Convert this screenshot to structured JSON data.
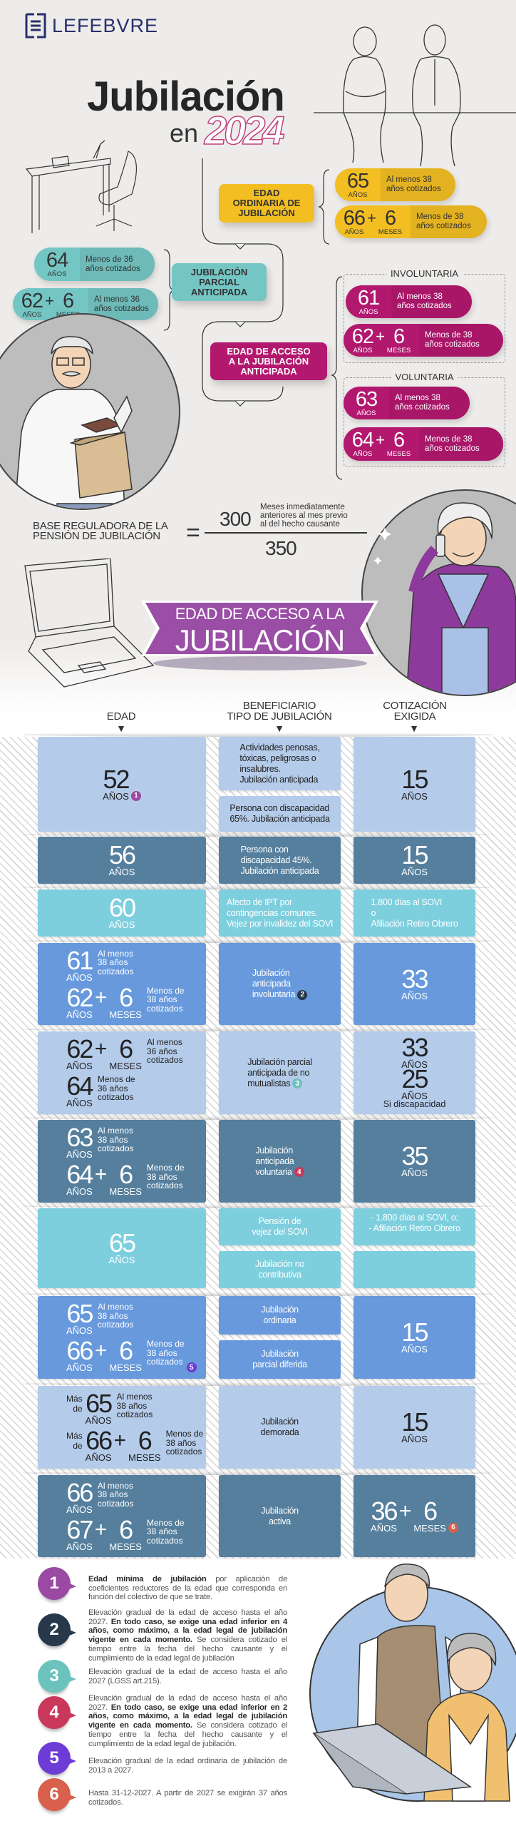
{
  "brand": {
    "logo_text": "LEFEBVRE"
  },
  "header": {
    "title": "Jubilación",
    "en": "en",
    "year": "2024"
  },
  "flow": {
    "ordinaria": {
      "label": "EDAD\nORDINARIA DE\nJUBILACIÓN",
      "color": "#f2be22",
      "items": [
        {
          "num": "65",
          "unit": "AÑOS",
          "desc": "Al menos 38\naños cotizados"
        },
        {
          "num": "66",
          "unit": "AÑOS",
          "sign": "+",
          "num2": "6",
          "unit2": "MESES",
          "desc": "Menos de 38\naños cotizados"
        }
      ]
    },
    "parcial": {
      "label": "JUBILACIÓN\nPARCIAL\nANTICIPADA",
      "color": "#74c6c4",
      "items": [
        {
          "num": "64",
          "unit": "AÑOS",
          "desc": "Menos de 36\naños cotizados"
        },
        {
          "num": "62",
          "unit": "AÑOS",
          "sign": "+",
          "num2": "6",
          "unit2": "MESES",
          "desc": "Al menos 36\naños cotizados"
        }
      ]
    },
    "anticipada": {
      "label": "EDAD DE ACCESO\nA LA JUBILACIÓN\nANTICIPADA",
      "color": "#b3186f",
      "involuntaria": {
        "label": "INVOLUNTARIA",
        "items": [
          {
            "num": "61",
            "unit": "AÑOS",
            "desc": "Al menos 38\naños cotizados"
          },
          {
            "num": "62",
            "unit": "AÑOS",
            "sign": "+",
            "num2": "6",
            "unit2": "MESES",
            "desc": "Menos de 38\naños cotizados"
          }
        ]
      },
      "voluntaria": {
        "label": "VOLUNTARIA",
        "items": [
          {
            "num": "63",
            "unit": "AÑOS",
            "desc": "Al menos 38\naños cotizados"
          },
          {
            "num": "64",
            "unit": "AÑOS",
            "sign": "+",
            "num2": "6",
            "unit2": "MESES",
            "desc": "Menos de 38\naños cotizados"
          }
        ]
      }
    }
  },
  "formula": {
    "left": "BASE REGULADORA DE LA\nPENSIÓN DE JUBILACIÓN",
    "equals": "=",
    "numerator": "300",
    "numerator_note": "Meses inmediatamente\nanteriores al mes previo\nal del hecho causante",
    "denominator": "350"
  },
  "banner": {
    "line1": "EDAD DE ACCESO A LA",
    "line2": "JUBILACIÓN",
    "color": "#9a4ea6"
  },
  "table": {
    "headers": {
      "edad": "EDAD",
      "tipo": "BENEFICIARIO\nTIPO DE JUBILACIÓN",
      "cotizacion": "COTIZACIÓN\nEXIGIDA",
      "arrow": "▼"
    },
    "row_colors": [
      "#b4cbea",
      "#557f9d",
      "#7dcfde",
      "#6799dc",
      "#b4cbea",
      "#557f9d",
      "#7dcfde",
      "#6799dc",
      "#b4cbea",
      "#557f9d"
    ],
    "rows": [
      {
        "edad": [
          {
            "num": "52",
            "unit": "AÑOS",
            "badge": "1"
          }
        ],
        "tipo": [
          "Actividades penosas,\ntóxicas, peligrosas o\ninsalubres.\nJubilación anticipada",
          "Persona con discapacidad\n65%. Jubilación anticipada"
        ],
        "cot": [
          [
            {
              "num": "15",
              "unit": "AÑOS"
            }
          ]
        ]
      },
      {
        "edad": [
          {
            "num": "56",
            "unit": "AÑOS"
          }
        ],
        "tipo": [
          "Persona con\ndiscapacidad 45%.\nJubilación anticipada"
        ],
        "cot": [
          [
            {
              "num": "15",
              "unit": "AÑOS"
            }
          ]
        ]
      },
      {
        "edad": [
          {
            "num": "60",
            "unit": "AÑOS"
          }
        ],
        "tipo": [
          "Afecto de IPT por\ncontingencias comunes.\nVejez por invalidez del SOVI"
        ],
        "cot": [
          [
            {
              "text": "1.800 días al SOVI\no\nAfiliación Retiro Obrero"
            }
          ]
        ]
      },
      {
        "edad": [
          {
            "num": "61",
            "unit": "AÑOS",
            "note": "Al menos\n38 años\ncotizados"
          },
          {
            "num": "62",
            "unit": "AÑOS",
            "sign": "+",
            "num2": "6",
            "unit2": "MESES",
            "note": "Menos de\n38 años\ncotizados"
          }
        ],
        "tipo": [
          "Jubilación\nanticipada\ninvoluntaria"
        ],
        "tipo_badge": "2",
        "cot": [
          [
            {
              "num": "33",
              "unit": "AÑOS"
            }
          ]
        ]
      },
      {
        "edad": [
          {
            "num": "62",
            "unit": "AÑOS",
            "sign": "+",
            "num2": "6",
            "unit2": "MESES",
            "note": "Al menos\n36 años\ncotizados"
          },
          {
            "num": "64",
            "unit": "AÑOS",
            "note": "Menos de\n36 años\ncotizados"
          }
        ],
        "tipo": [
          "Jubilación parcial\nanticipada de no\nmutualistas"
        ],
        "tipo_badge": "3",
        "cot": [
          [
            {
              "num": "33",
              "unit": "AÑOS"
            },
            {
              "num": "25",
              "unit": "AÑOS",
              "sub": "Si discapacidad"
            }
          ]
        ]
      },
      {
        "edad": [
          {
            "num": "63",
            "unit": "AÑOS",
            "note": "Al menos\n38 años\ncotizados"
          },
          {
            "num": "64",
            "unit": "AÑOS",
            "sign": "+",
            "num2": "6",
            "unit2": "MESES",
            "note": "Menos de\n38 años\ncotizados"
          }
        ],
        "tipo": [
          "Jubilación\nanticipada\nvoluntaria"
        ],
        "tipo_badge": "4",
        "cot": [
          [
            {
              "num": "35",
              "unit": "AÑOS"
            }
          ]
        ]
      },
      {
        "edad": [
          {
            "num": "65",
            "unit": "AÑOS"
          }
        ],
        "tipo": [
          "Pensión de\nvejez del SOVI",
          "Jubilación no\ncontributiva"
        ],
        "cot": [
          [
            {
              "text": "- 1.800 días al SOVI, o;\n- Afiliación Retiro Obrero"
            }
          ],
          []
        ]
      },
      {
        "edad": [
          {
            "num": "65",
            "unit": "AÑOS",
            "note": "Al menos\n38 años\ncotizados"
          },
          {
            "num": "66",
            "unit": "AÑOS",
            "sign": "+",
            "num2": "6",
            "unit2": "MESES",
            "note": "Menos de\n38 años\ncotizados",
            "badge": "5"
          }
        ],
        "tipo": [
          "Jubilación\nordinaria",
          "Jubilación\nparcial diferida"
        ],
        "cot": [
          [
            {
              "num": "15",
              "unit": "AÑOS"
            }
          ]
        ]
      },
      {
        "edad": [
          {
            "prefix": "Más\nde",
            "num": "65",
            "unit": "AÑOS",
            "note": "Al menos\n38 años\ncotizados"
          },
          {
            "prefix": "Más\nde",
            "num": "66",
            "unit": "AÑOS",
            "sign": "+",
            "num2": "6",
            "unit2": "MESES",
            "note": "Menos de\n38 años\ncotizados"
          }
        ],
        "tipo": [
          "Jubilación\ndemorada"
        ],
        "cot": [
          [
            {
              "num": "15",
              "unit": "AÑOS"
            }
          ]
        ]
      },
      {
        "edad": [
          {
            "num": "66",
            "unit": "AÑOS",
            "note": "Al menos\n38 años\ncotizados"
          },
          {
            "num": "67",
            "unit": "AÑOS",
            "sign": "+",
            "num2": "6",
            "unit2": "MESES",
            "note": "Menos de\n38 años\ncotizados"
          }
        ],
        "tipo": [
          "Jubilación\nactiva"
        ],
        "cot": [
          [
            {
              "num": "36",
              "unit": "AÑOS",
              "sign": "+",
              "num2": "6",
              "unit2": "MESES",
              "badge": "6"
            }
          ]
        ]
      }
    ]
  },
  "badge_colors": {
    "1": "#9b4aa3",
    "2": "#26384a",
    "3": "#6cc3bd",
    "4": "#c9385a",
    "5": "#6d3bd6",
    "6": "#d9604c"
  },
  "footnotes": [
    {
      "n": "1",
      "segments": [
        {
          "text": "Edad mínima de jubilación",
          "bold": true
        },
        {
          "text": " por aplicación de coeficientes reductores de la edad que corresponda en función del colectivo de que se trate."
        }
      ]
    },
    {
      "n": "2",
      "segments": [
        {
          "text": "Elevación gradual de la edad de acceso hasta el año 2027. "
        },
        {
          "text": "En todo caso, se exige una edad inferior en 4 años, como máximo, a la edad legal de jubilación vigente en cada momento.",
          "bold": true
        },
        {
          "text": " Se considera cotizado el tiempo entre la fecha del hecho causante y el cumplimiento de la edad legal de jubilación"
        }
      ]
    },
    {
      "n": "3",
      "segments": [
        {
          "text": "Elevación gradual de la edad de acceso hasta el año 2027 (LGSS art.215)."
        }
      ]
    },
    {
      "n": "4",
      "segments": [
        {
          "text": "Elevación gradual de la edad de acceso hasta el año 2027. "
        },
        {
          "text": "En todo caso, se exige una edad inferior en 2 años, como máximo, a la edad legal de jubilación vigente en cada momento.",
          "bold": true
        },
        {
          "text": " Se considera cotizado el tiempo entre la fecha del hecho causante y el cumplimiento de la edad legal de jubilación."
        }
      ]
    },
    {
      "n": "5",
      "segments": [
        {
          "text": "Elevación gradual de la edad ordinaria de jubilación de 2013 a 2027."
        }
      ]
    },
    {
      "n": "6",
      "segments": [
        {
          "text": "Hasta 31-12-2027. A partir de 2027 se exigirán 37 años cotizados."
        }
      ]
    }
  ]
}
